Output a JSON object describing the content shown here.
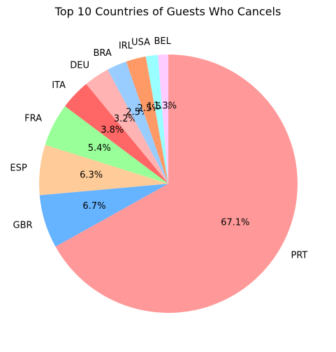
{
  "chart_data": {
    "type": "pie",
    "title": "Top 10 Countries of Guests Who Cancels",
    "slices": [
      {
        "label": "PRT",
        "value": 67.1,
        "pct_label": "67.1%",
        "color": "#ff9999"
      },
      {
        "label": "GBR",
        "value": 6.7,
        "pct_label": "6.7%",
        "color": "#66b3ff"
      },
      {
        "label": "ESP",
        "value": 6.3,
        "pct_label": "6.3%",
        "color": "#ffcc99"
      },
      {
        "label": "FRA",
        "value": 5.4,
        "pct_label": "5.4%",
        "color": "#99ff99"
      },
      {
        "label": "ITA",
        "value": 3.8,
        "pct_label": "3.8%",
        "color": "#ff6666"
      },
      {
        "label": "DEU",
        "value": 3.2,
        "pct_label": "3.2%",
        "color": "#ffb3b3"
      },
      {
        "label": "BRA",
        "value": 2.5,
        "pct_label": "2.5%",
        "color": "#99ccff"
      },
      {
        "label": "IRL",
        "value": 2.5,
        "pct_label": "2.5%",
        "color": "#ff9966"
      },
      {
        "label": "USA",
        "value": 1.5,
        "pct_label": "1.5%",
        "color": "#99ffff"
      },
      {
        "label": "BEL",
        "value": 1.3,
        "pct_label": "1.3%",
        "color": "#ffccff"
      }
    ],
    "start_angle": 90,
    "direction": "clockwise",
    "legend": "none"
  }
}
